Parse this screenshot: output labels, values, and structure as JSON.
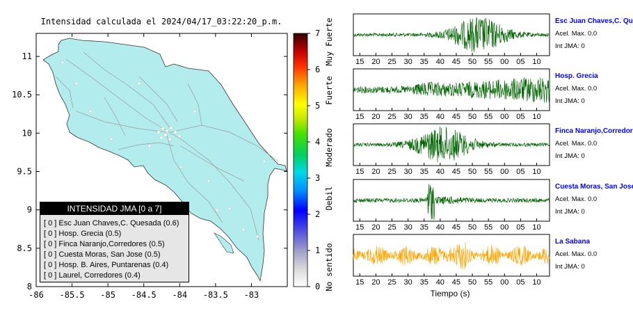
{
  "map_title": "Intensidad calculada el 2024/04/17_03:22:20_p.m.",
  "legend": {
    "header": "INTENSIDAD JMA [0 a 7]",
    "items": [
      "[ 0 ]  Esc Juan Chaves,C. Quesada (0.6)",
      "[ 0 ]  Hosp. Grecia (0.5)",
      "[ 0 ]  Finca Naranjo,Corredores (0.5)",
      "[ 0 ]  Cuesta Moras, San Jose (0.5)",
      "[ 0 ]  Hosp. B. Aires, Puntarenas (0.4)",
      "[ 0 ]  Laurel, Corredores (0.4)"
    ]
  },
  "colorbar": {
    "ticks": [
      "0",
      "1",
      "2",
      "3",
      "4",
      "5",
      "6",
      "7"
    ],
    "labels": [
      "No sentido",
      "Debil",
      "Moderado",
      "Fuerte",
      "Muy Fuerte"
    ]
  },
  "chart_data": [
    {
      "type": "map",
      "x_ticks": [
        "-86",
        "-85.5",
        "-85",
        "-84.5",
        "-84",
        "-83.5",
        "-83"
      ],
      "y_ticks": [
        "8",
        "8.5",
        "9",
        "9.5",
        "10",
        "10.5",
        "11"
      ],
      "xlim": [
        -86,
        -82.5
      ],
      "ylim": [
        8,
        11.3
      ]
    },
    {
      "type": "line",
      "panels": [
        {
          "station": "Esc Juan Chaves,C. Quesada",
          "accel_label": "Acel. Max. 0.0",
          "int_label": "Int JMA: 0",
          "color": "#006400",
          "peak_at": 52,
          "profile": "burst"
        },
        {
          "station": "Hosp. Grecia",
          "accel_label": "Acel. Max. 0.0",
          "int_label": "Int JMA: 0",
          "color": "#006400",
          "peak_at": 70,
          "profile": "rising"
        },
        {
          "station": "Finca Naranjo,Corredores",
          "accel_label": "Acel. Max. 0.0",
          "int_label": "Int JMA: 0",
          "color": "#006400",
          "peak_at": 41,
          "profile": "burst"
        },
        {
          "station": "Cuesta Moras, San Jose",
          "accel_label": "Acel. Max. 0.0",
          "int_label": "Int JMA: 0",
          "color": "#006400",
          "peak_at": 37,
          "profile": "spike"
        },
        {
          "station": "La Sabana",
          "accel_label": "Acel. Max. 0.0",
          "int_label": "Int JMA: 0",
          "color": "#FFA500",
          "peak_at": 45,
          "profile": "uniform"
        }
      ],
      "x_ticks": [
        "15",
        "20",
        "25",
        "30",
        "35",
        "40",
        "45",
        "50",
        "55",
        "00",
        "05",
        "10"
      ],
      "xlabel": "Tiempo (s)"
    }
  ]
}
